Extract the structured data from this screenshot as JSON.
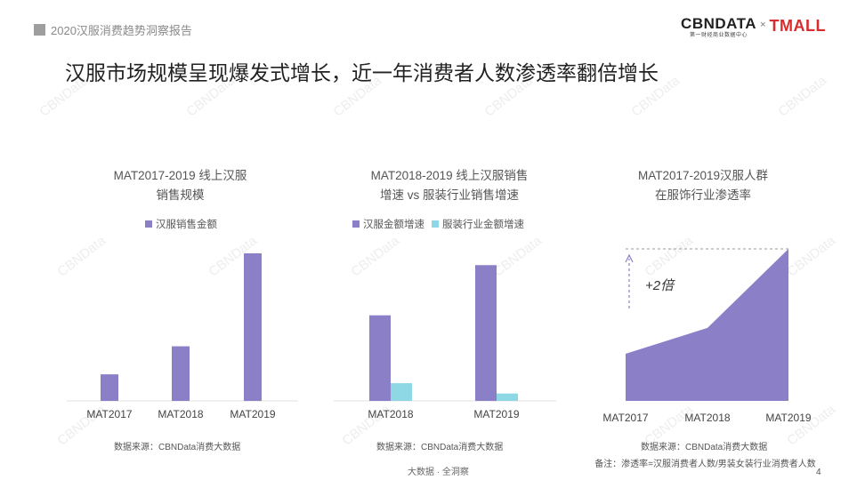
{
  "header": {
    "report_title": "2020汉服消费趋势洞察报告",
    "logo_cbn": "CBNDATA",
    "logo_cbn_sub": "第一财经商业数据中心",
    "logo_separator": "×",
    "logo_tmall": "TMALL"
  },
  "headline": "汉服市场规模呈现爆发式增长，近一年消费者人数渗透率翻倍增长",
  "watermark": "CBNData",
  "colors": {
    "purple": "#8b7fc8",
    "cyan": "#8ed7e5",
    "dash": "#9a9a9a"
  },
  "chart_data": [
    {
      "type": "bar",
      "title_line1": "MAT2017-2019 线上汉服",
      "title_line2": "销售规模",
      "categories": [
        "MAT2017",
        "MAT2018",
        "MAT2019"
      ],
      "series": [
        {
          "name": "汉服销售金额",
          "color": "#8b7fc8",
          "values": [
            18,
            37,
            100
          ]
        }
      ],
      "ylim": [
        0,
        100
      ],
      "source": "数据来源：CBNData消费大数据"
    },
    {
      "type": "bar",
      "title_line1": "MAT2018-2019 线上汉服销售",
      "title_line2": "增速 vs 服装行业销售增速",
      "categories": [
        "MAT2018",
        "MAT2019"
      ],
      "series": [
        {
          "name": "汉服金额增速",
          "color": "#8b7fc8",
          "values": [
            58,
            92
          ]
        },
        {
          "name": "服装行业金额增速",
          "color": "#8ed7e5",
          "values": [
            12,
            5
          ]
        }
      ],
      "ylim": [
        0,
        100
      ],
      "source": "数据来源：CBNData消费大数据"
    },
    {
      "type": "area",
      "title_line1": "MAT2017-2019汉服人群",
      "title_line2": "在服饰行业渗透率",
      "categories": [
        "MAT2017",
        "MAT2018",
        "MAT2019"
      ],
      "values": [
        31,
        48,
        100
      ],
      "ylim": [
        0,
        100
      ],
      "annotation": "+2倍",
      "source": "数据来源：CBNData消费大数据",
      "note": "备注：渗透率=汉服消费者人数/男装女装行业消费者人数"
    }
  ],
  "footer": "大数据 · 全洞察",
  "page_number": "4"
}
